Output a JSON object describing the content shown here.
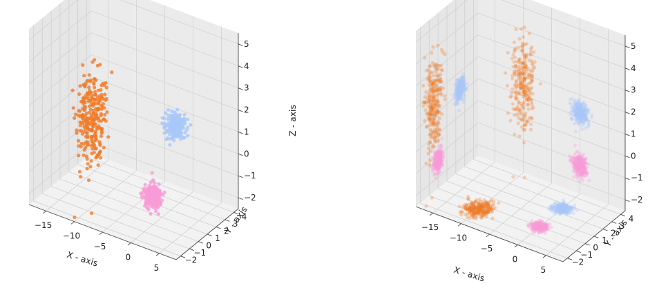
{
  "chart_data": [
    {
      "type": "scatter",
      "projection": "3d",
      "title": "",
      "xlabel": "X - axis",
      "ylabel": "Y - axis",
      "zlabel": "Z - axis",
      "xlim": [
        -18,
        8
      ],
      "ylim": [
        -2.5,
        4.5
      ],
      "zlim": [
        -2.5,
        5.5
      ],
      "xticks": [
        -15,
        -10,
        -5,
        0,
        5
      ],
      "yticks": [
        -2,
        -1,
        0,
        1,
        2,
        3,
        4
      ],
      "zticks": [
        -2,
        -1,
        0,
        1,
        2,
        3,
        4,
        5
      ],
      "grid": true,
      "series": [
        {
          "color": "#f07a28",
          "alpha": 0.8,
          "center": [
            -10,
            -0.5,
            1.5
          ],
          "spread": [
            2.0,
            0.6,
            1.3
          ],
          "count": 260
        },
        {
          "color": "#a9c8fa",
          "alpha": 0.8,
          "center": [
            0,
            2.5,
            1.2
          ],
          "spread": [
            1.3,
            0.3,
            0.3
          ],
          "count": 260
        },
        {
          "color": "#f89bd6",
          "alpha": 0.8,
          "center": [
            0,
            0,
            -1.2
          ],
          "spread": [
            1.3,
            0.3,
            0.3
          ],
          "count": 260
        }
      ]
    },
    {
      "type": "scatter",
      "projection": "3d",
      "title": "",
      "xlabel": "X - axis",
      "ylabel": "Y - axis",
      "zlabel": "",
      "xlim": [
        -18,
        8
      ],
      "ylim": [
        -2.5,
        4.5
      ],
      "zlim": [
        -2.5,
        5.5
      ],
      "xticks": [
        -15,
        -10,
        -5,
        0,
        5
      ],
      "yticks": [
        -2,
        -1,
        0,
        1,
        2,
        3,
        4
      ],
      "zticks": [
        -2,
        -1,
        0,
        1,
        2,
        3,
        4,
        5
      ],
      "grid": true,
      "series": [
        {
          "color": "#f07a28",
          "alpha": 0.3,
          "center": [
            -10,
            -0.5,
            1.5
          ],
          "spread": [
            2.0,
            0.6,
            1.3
          ],
          "count": 260
        },
        {
          "color": "#a9c8fa",
          "alpha": 0.3,
          "center": [
            0,
            2.5,
            1.2
          ],
          "spread": [
            1.3,
            0.3,
            0.3
          ],
          "count": 260
        },
        {
          "color": "#f89bd6",
          "alpha": 0.3,
          "center": [
            0,
            0,
            -1.2
          ],
          "spread": [
            1.3,
            0.3,
            0.3
          ],
          "count": 260
        }
      ],
      "projections": [
        "xy-floor",
        "xz-back",
        "yz-side"
      ]
    }
  ]
}
